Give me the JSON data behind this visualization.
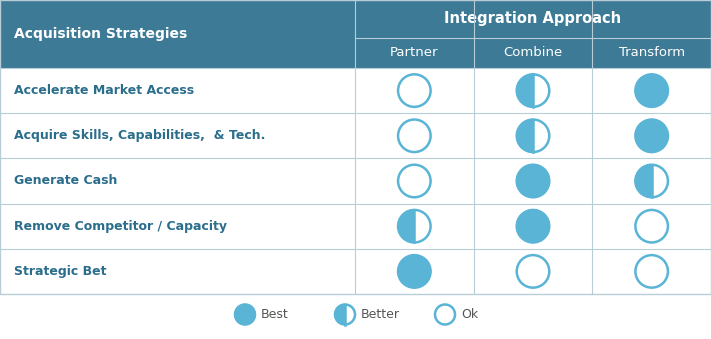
{
  "title": "Integration Approach",
  "header_bg_color": "#3d7a96",
  "header_text_color": "#ffffff",
  "row_label_color": "#2a6e8c",
  "grid_line_color": "#b8cdd8",
  "circle_fill_color": "#5ab4d6",
  "circle_edge_color": "#5ab4d6",
  "background_color": "#ffffff",
  "col_header": [
    "Partner",
    "Combine",
    "Transform"
  ],
  "row_header": "Acquisition Strategies",
  "rows": [
    "Accelerate Market Access",
    "Acquire Skills, Capabilities,  & Tech.",
    "Generate Cash",
    "Remove Competitor / Capacity",
    "Strategic Bet"
  ],
  "cells": [
    [
      "ok",
      "better",
      "best"
    ],
    [
      "ok",
      "better",
      "best"
    ],
    [
      "ok",
      "best",
      "better"
    ],
    [
      "better",
      "best",
      "ok"
    ],
    [
      "best",
      "ok",
      "ok"
    ]
  ],
  "legend": [
    {
      "label": "Best",
      "type": "best"
    },
    {
      "label": "Better",
      "type": "better"
    },
    {
      "label": "Ok",
      "type": "ok"
    }
  ],
  "fig_width": 7.11,
  "fig_height": 3.39,
  "dpi": 100
}
